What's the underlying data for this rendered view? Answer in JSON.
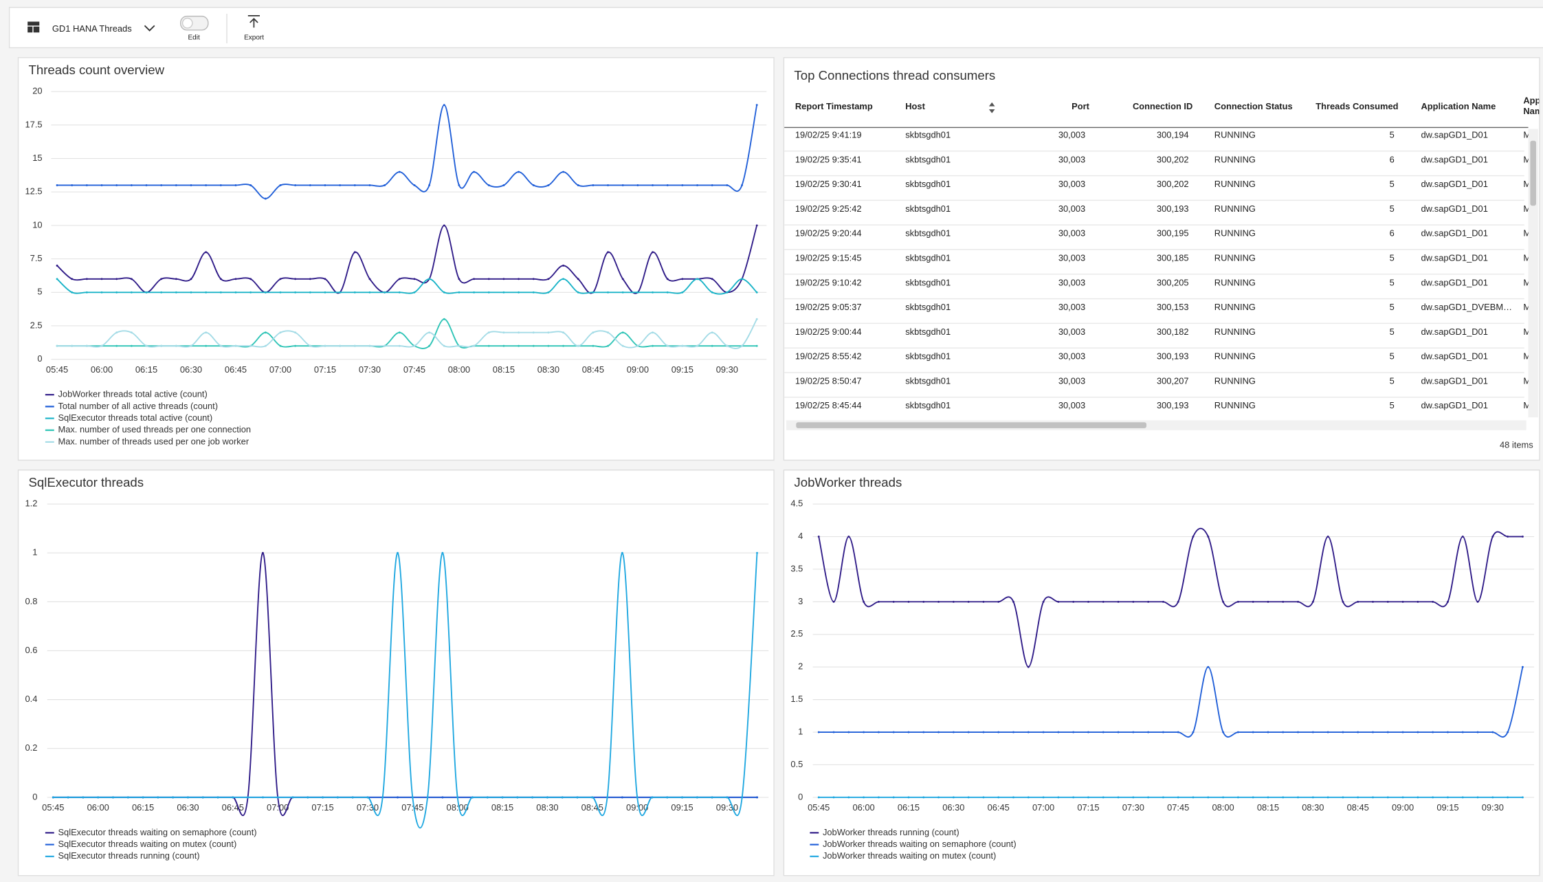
{
  "toolbar": {
    "title": "GD1 HANA Threads",
    "edit": "Edit",
    "export": "Export"
  },
  "chart_data": [
    {
      "type": "line",
      "title": "Threads count overview",
      "categories": [
        "05:45",
        null,
        null,
        "06:00",
        null,
        null,
        "06:15",
        null,
        null,
        "06:30",
        null,
        null,
        "06:45",
        null,
        null,
        "07:00",
        null,
        null,
        "07:15",
        null,
        null,
        "07:30",
        null,
        null,
        "07:45",
        null,
        null,
        "08:00",
        null,
        null,
        "08:15",
        null,
        null,
        "08:30",
        null,
        null,
        "08:45",
        null,
        null,
        "09:00",
        null,
        null,
        "09:15",
        null,
        null,
        "09:30",
        null,
        null
      ],
      "series": [
        {
          "name": "JobWorker threads total active (count)",
          "color": "#2e1a87",
          "values": [
            7,
            6,
            6,
            6,
            6,
            6,
            5,
            6,
            6,
            6,
            8,
            6,
            6,
            6,
            5,
            6,
            6,
            6,
            6,
            5,
            8,
            6,
            5,
            6,
            6,
            6,
            10,
            6,
            6,
            6,
            6,
            6,
            6,
            6,
            7,
            6,
            5,
            8,
            6,
            5,
            8,
            6,
            6,
            6,
            6,
            5,
            6,
            10
          ]
        },
        {
          "name": "Total number of all active threads (count)",
          "color": "#1f5ed8",
          "values": [
            13,
            13,
            13,
            13,
            13,
            13,
            13,
            13,
            13,
            13,
            13,
            13,
            13,
            13,
            12,
            13,
            13,
            13,
            13,
            13,
            13,
            13,
            13,
            14,
            13,
            13,
            19,
            13,
            14,
            13,
            13,
            14,
            13,
            13,
            14,
            13,
            13,
            13,
            13,
            13,
            13,
            13,
            13,
            13,
            13,
            13,
            13,
            19
          ]
        },
        {
          "name": "SqlExecutor threads total active (count)",
          "color": "#18b3c7",
          "values": [
            6,
            5,
            5,
            5,
            5,
            5,
            5,
            5,
            5,
            5,
            5,
            5,
            5,
            5,
            5,
            5,
            5,
            5,
            5,
            5,
            5,
            5,
            5,
            5,
            5,
            6,
            5,
            5,
            5,
            5,
            5,
            5,
            5,
            5,
            6,
            5,
            5,
            5,
            5,
            5,
            5,
            5,
            5,
            6,
            5,
            5,
            6,
            5
          ]
        },
        {
          "name": "Max. number of used threads per one connection",
          "color": "#2ec4b6",
          "values": [
            1,
            1,
            1,
            1,
            1,
            1,
            1,
            1,
            1,
            1,
            1,
            1,
            1,
            1,
            2,
            1,
            1,
            1,
            1,
            1,
            1,
            1,
            1,
            2,
            1,
            1,
            3,
            1,
            1,
            1,
            1,
            1,
            1,
            1,
            1,
            1,
            1,
            1,
            2,
            1,
            1,
            1,
            1,
            1,
            1,
            1,
            1,
            1
          ]
        },
        {
          "name": "Max. number of threads used per one job worker",
          "color": "#a3dbe6",
          "values": [
            1,
            1,
            1,
            1,
            2,
            2,
            1,
            1,
            1,
            1,
            2,
            1,
            1,
            1,
            1,
            2,
            2,
            1,
            1,
            1,
            1,
            1,
            1,
            1,
            1,
            2,
            1,
            1,
            1,
            2,
            2,
            2,
            2,
            2,
            2,
            1,
            2,
            2,
            1,
            1,
            2,
            1,
            1,
            1,
            2,
            1,
            1,
            3
          ]
        }
      ],
      "ylim": [
        0,
        20
      ],
      "yticks": [
        0,
        2.5,
        5,
        7.5,
        10,
        12.5,
        15,
        17.5,
        20
      ],
      "grid": true
    },
    {
      "type": "line",
      "title": "SqlExecutor threads",
      "categories": [
        "05:45",
        null,
        null,
        "06:00",
        null,
        null,
        "06:15",
        null,
        null,
        "06:30",
        null,
        null,
        "06:45",
        null,
        null,
        "07:00",
        null,
        null,
        "07:15",
        null,
        null,
        "07:30",
        null,
        null,
        "07:45",
        null,
        null,
        "08:00",
        null,
        null,
        "08:15",
        null,
        null,
        "08:30",
        null,
        null,
        "08:45",
        null,
        null,
        "09:00",
        null,
        null,
        "09:15",
        null,
        null,
        "09:30",
        null,
        null
      ],
      "series": [
        {
          "name": "SqlExecutor threads waiting on semaphore (count)",
          "color": "#2e1a87",
          "values": [
            0,
            0,
            0,
            0,
            0,
            0,
            0,
            0,
            0,
            0,
            0,
            0,
            0,
            0,
            1,
            0,
            0,
            0,
            0,
            0,
            0,
            0,
            0,
            0,
            0,
            0,
            0,
            0,
            0,
            0,
            0,
            0,
            0,
            0,
            0,
            0,
            0,
            0,
            0,
            0,
            0,
            0,
            0,
            0,
            0,
            0,
            0,
            0
          ]
        },
        {
          "name": "SqlExecutor threads waiting on mutex (count)",
          "color": "#1f5ed8",
          "values": [
            0,
            0,
            0,
            0,
            0,
            0,
            0,
            0,
            0,
            0,
            0,
            0,
            0,
            0,
            0,
            0,
            0,
            0,
            0,
            0,
            0,
            0,
            0,
            0,
            0,
            0,
            0,
            0,
            0,
            0,
            0,
            0,
            0,
            0,
            0,
            0,
            0,
            0,
            0,
            0,
            0,
            0,
            0,
            0,
            0,
            0,
            0,
            0
          ]
        },
        {
          "name": "SqlExecutor threads running (count)",
          "color": "#1ea7e0",
          "values": [
            0,
            0,
            0,
            0,
            0,
            0,
            0,
            0,
            0,
            0,
            0,
            0,
            0,
            0,
            0,
            0,
            0,
            0,
            0,
            0,
            0,
            0,
            0,
            1,
            0,
            0,
            1,
            0,
            0,
            0,
            0,
            0,
            0,
            0,
            0,
            0,
            0,
            0,
            1,
            0,
            0,
            0,
            0,
            0,
            0,
            0,
            0,
            1
          ]
        }
      ],
      "ylim": [
        0,
        1.2
      ],
      "yticks": [
        0,
        0.2,
        0.4,
        0.6,
        0.8,
        1,
        1.2
      ],
      "grid": true
    },
    {
      "type": "line",
      "title": "JobWorker threads",
      "categories": [
        "05:45",
        null,
        null,
        "06:00",
        null,
        null,
        "06:15",
        null,
        null,
        "06:30",
        null,
        null,
        "06:45",
        null,
        null,
        "07:00",
        null,
        null,
        "07:15",
        null,
        null,
        "07:30",
        null,
        null,
        "07:45",
        null,
        null,
        "08:00",
        null,
        null,
        "08:15",
        null,
        null,
        "08:30",
        null,
        null,
        "08:45",
        null,
        null,
        "09:00",
        null,
        null,
        "09:15",
        null,
        null,
        "09:30",
        null,
        null
      ],
      "series": [
        {
          "name": "JobWorker threads running (count)",
          "color": "#2e1a87",
          "values": [
            4,
            3,
            4,
            3,
            3,
            3,
            3,
            3,
            3,
            3,
            3,
            3,
            3,
            3,
            2,
            3,
            3,
            3,
            3,
            3,
            3,
            3,
            3,
            3,
            3,
            4,
            4,
            3,
            3,
            3,
            3,
            3,
            3,
            3,
            4,
            3,
            3,
            3,
            3,
            3,
            3,
            3,
            3,
            4,
            3,
            4,
            4,
            4
          ]
        },
        {
          "name": "JobWorker threads waiting on semaphore (count)",
          "color": "#1f5ed8",
          "values": [
            1,
            1,
            1,
            1,
            1,
            1,
            1,
            1,
            1,
            1,
            1,
            1,
            1,
            1,
            1,
            1,
            1,
            1,
            1,
            1,
            1,
            1,
            1,
            1,
            1,
            1,
            2,
            1,
            1,
            1,
            1,
            1,
            1,
            1,
            1,
            1,
            1,
            1,
            1,
            1,
            1,
            1,
            1,
            1,
            1,
            1,
            1,
            2
          ]
        },
        {
          "name": "JobWorker threads waiting on mutex (count)",
          "color": "#1ea7e0",
          "values": [
            0,
            0,
            0,
            0,
            0,
            0,
            0,
            0,
            0,
            0,
            0,
            0,
            0,
            0,
            0,
            0,
            0,
            0,
            0,
            0,
            0,
            0,
            0,
            0,
            0,
            0,
            0,
            0,
            0,
            0,
            0,
            0,
            0,
            0,
            0,
            0,
            0,
            0,
            0,
            0,
            0,
            0,
            0,
            0,
            0,
            0,
            0,
            0
          ]
        }
      ],
      "ylim": [
        0,
        4.5
      ],
      "yticks": [
        0,
        0.5,
        1,
        1.5,
        2,
        2.5,
        3,
        3.5,
        4,
        4.5
      ],
      "grid": true
    }
  ],
  "table": {
    "title": "Top Connections thread consumers",
    "columns": [
      "Report Timestamp",
      "Host",
      "Port",
      "Connection ID",
      "Connection Status",
      "Threads Consumed",
      "Application Name",
      "App Nam"
    ],
    "rows": [
      [
        "19/02/25 9:41:19",
        "skbtsgdh01",
        "30,003",
        "300,194",
        "RUNNING",
        "5",
        "dw.sapGD1_D01",
        "M"
      ],
      [
        "19/02/25 9:35:41",
        "skbtsgdh01",
        "30,003",
        "300,202",
        "RUNNING",
        "6",
        "dw.sapGD1_D01",
        "M"
      ],
      [
        "19/02/25 9:30:41",
        "skbtsgdh01",
        "30,003",
        "300,202",
        "RUNNING",
        "5",
        "dw.sapGD1_D01",
        "M"
      ],
      [
        "19/02/25 9:25:42",
        "skbtsgdh01",
        "30,003",
        "300,193",
        "RUNNING",
        "5",
        "dw.sapGD1_D01",
        "M"
      ],
      [
        "19/02/25 9:20:44",
        "skbtsgdh01",
        "30,003",
        "300,195",
        "RUNNING",
        "6",
        "dw.sapGD1_D01",
        "M"
      ],
      [
        "19/02/25 9:15:45",
        "skbtsgdh01",
        "30,003",
        "300,185",
        "RUNNING",
        "5",
        "dw.sapGD1_D01",
        "M"
      ],
      [
        "19/02/25 9:10:42",
        "skbtsgdh01",
        "30,003",
        "300,205",
        "RUNNING",
        "5",
        "dw.sapGD1_D01",
        "M"
      ],
      [
        "19/02/25 9:05:37",
        "skbtsgdh01",
        "30,003",
        "300,153",
        "RUNNING",
        "5",
        "dw.sapGD1_DVEBM…",
        "M"
      ],
      [
        "19/02/25 9:00:44",
        "skbtsgdh01",
        "30,003",
        "300,182",
        "RUNNING",
        "5",
        "dw.sapGD1_D01",
        "M"
      ],
      [
        "19/02/25 8:55:42",
        "skbtsgdh01",
        "30,003",
        "300,193",
        "RUNNING",
        "5",
        "dw.sapGD1_D01",
        "M"
      ],
      [
        "19/02/25 8:50:47",
        "skbtsgdh01",
        "30,003",
        "300,207",
        "RUNNING",
        "5",
        "dw.sapGD1_D01",
        "M"
      ],
      [
        "19/02/25 8:45:44",
        "skbtsgdh01",
        "30,003",
        "300,193",
        "RUNNING",
        "5",
        "dw.sapGD1_D01",
        "M"
      ]
    ],
    "footer": "48 items"
  }
}
